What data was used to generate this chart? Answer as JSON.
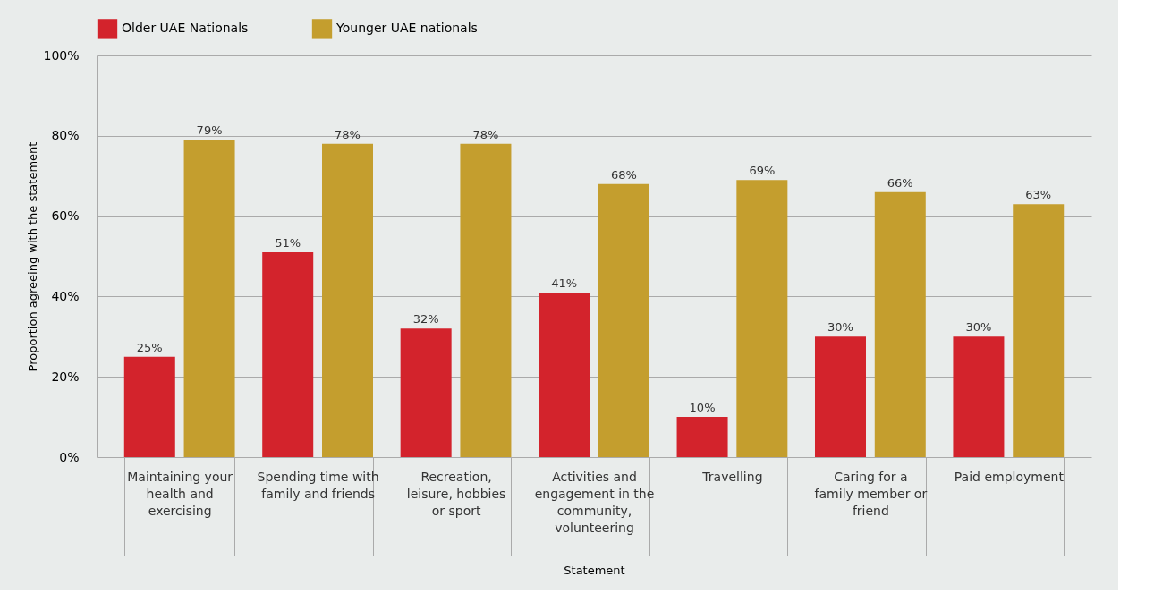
{
  "chart_data": {
    "type": "bar",
    "xlabel": "Statement",
    "ylabel": "Proportion agreeing with the statement",
    "categories": [
      "Maintaining your health and exercising",
      "Spending time with family and friends",
      "Recreation, leisure, hobbies or sport",
      "Activities and engagement in the community, volunteering",
      "Travelling",
      "Caring for a family member or friend",
      "Paid employment"
    ],
    "series": [
      {
        "name": "Older UAE Nationals",
        "color": "#d3232c",
        "values": [
          25,
          51,
          32,
          41,
          10,
          30,
          30
        ],
        "value_labels": [
          "25%",
          "51%",
          "32%",
          "41%",
          "10%",
          "30%",
          "30%"
        ]
      },
      {
        "name": "Younger UAE nationals",
        "color": "#c49e2e",
        "values": [
          79,
          78,
          78,
          68,
          69,
          66,
          63
        ],
        "value_labels": [
          "79%",
          "78%",
          "78%",
          "68%",
          "69%",
          "66%",
          "63%"
        ]
      }
    ],
    "ylim": [
      0,
      100
    ],
    "yticks": [
      {
        "value": 0,
        "label": "0%"
      },
      {
        "value": 20,
        "label": "20%"
      },
      {
        "value": 40,
        "label": "40%"
      },
      {
        "value": 60,
        "label": "60%"
      },
      {
        "value": 80,
        "label": "80%"
      },
      {
        "value": 100,
        "label": "100%"
      }
    ],
    "grid": "y",
    "legend": "top"
  }
}
